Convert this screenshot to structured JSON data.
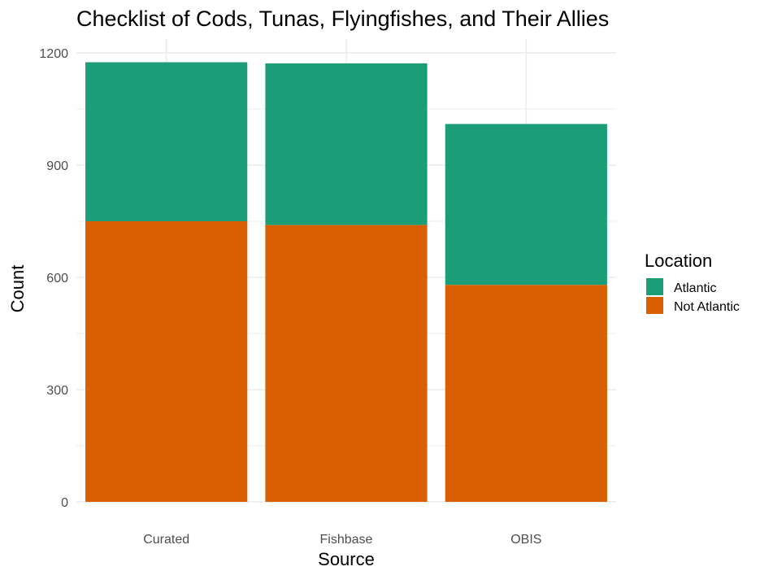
{
  "chart_data": {
    "type": "bar",
    "stacked": true,
    "title": "Checklist of Cods, Tunas, Flyingfishes, and Their Allies",
    "xlabel": "Source",
    "ylabel": "Count",
    "categories": [
      "Curated",
      "Fishbase",
      "OBIS"
    ],
    "series": [
      {
        "name": "Not Atlantic",
        "color": "#D95F02",
        "values": [
          750,
          740,
          580
        ]
      },
      {
        "name": "Atlantic",
        "color": "#1B9E77",
        "values": [
          425,
          432,
          430
        ]
      }
    ],
    "ylim": [
      0,
      1200
    ],
    "yticks": [
      0,
      300,
      600,
      900,
      1200
    ],
    "grid": true,
    "legend": {
      "title": "Location",
      "placement": "right",
      "items": [
        {
          "label": "Atlantic",
          "color": "#1B9E77"
        },
        {
          "label": "Not Atlantic",
          "color": "#D95F02"
        }
      ]
    }
  }
}
